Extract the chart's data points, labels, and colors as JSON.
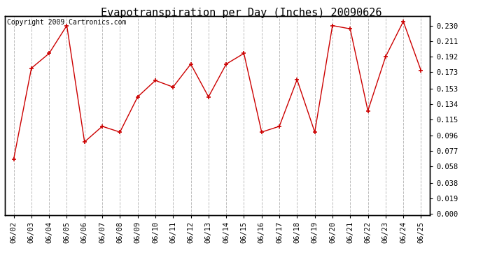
{
  "title": "Evapotranspiration per Day (Inches) 20090626",
  "copyright": "Copyright 2009 Cartronics.com",
  "dates": [
    "06/02",
    "06/03",
    "06/04",
    "06/05",
    "06/06",
    "06/07",
    "06/08",
    "06/09",
    "06/10",
    "06/11",
    "06/12",
    "06/13",
    "06/14",
    "06/15",
    "06/16",
    "06/17",
    "06/18",
    "06/19",
    "06/20",
    "06/21",
    "06/22",
    "06/23",
    "06/24",
    "06/25"
  ],
  "values": [
    0.067,
    0.178,
    0.196,
    0.23,
    0.088,
    0.107,
    0.1,
    0.143,
    0.163,
    0.155,
    0.183,
    0.143,
    0.183,
    0.196,
    0.1,
    0.107,
    0.164,
    0.1,
    0.23,
    0.226,
    0.126,
    0.192,
    0.235,
    0.175
  ],
  "line_color": "#cc0000",
  "marker": "+",
  "marker_size": 5,
  "marker_linewidth": 1.2,
  "background_color": "#ffffff",
  "plot_background": "#ffffff",
  "grid_color": "#bbbbbb",
  "grid_style": "--",
  "yticks": [
    0.0,
    0.019,
    0.038,
    0.058,
    0.077,
    0.096,
    0.115,
    0.134,
    0.153,
    0.173,
    0.192,
    0.211,
    0.23
  ],
  "title_fontsize": 11,
  "copyright_fontsize": 7,
  "tick_fontsize": 7.5
}
